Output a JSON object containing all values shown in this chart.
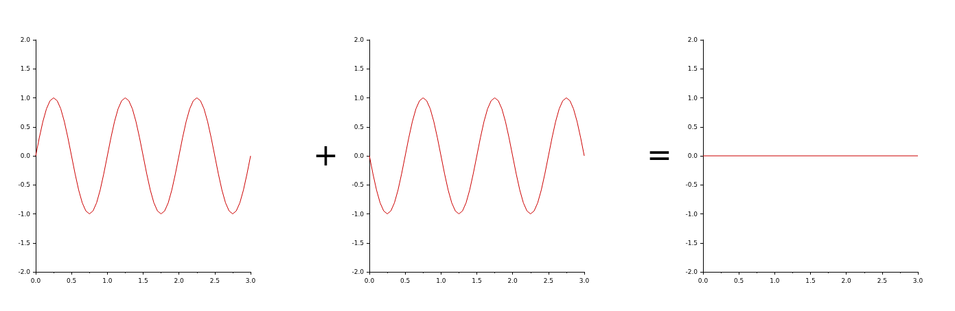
{
  "chart_data": [
    {
      "type": "line",
      "xlim": [
        0,
        3
      ],
      "ylim": [
        -2,
        2
      ],
      "grid": false,
      "marker": "none",
      "line_style": "solid",
      "xticks": [
        {
          "value": 0,
          "label": "0.0"
        },
        {
          "value": 0.5,
          "label": "0.5"
        },
        {
          "value": 1,
          "label": "1.0"
        },
        {
          "value": 1.5,
          "label": "1.5"
        },
        {
          "value": 2,
          "label": "2.0"
        },
        {
          "value": 2.5,
          "label": "2.5"
        },
        {
          "value": 3,
          "label": "3.0"
        }
      ],
      "yticks": [
        {
          "value": -2,
          "label": "-2.0"
        },
        {
          "value": -1.5,
          "label": "-1.5"
        },
        {
          "value": -1,
          "label": "-1.0"
        },
        {
          "value": -0.5,
          "label": "-0.5"
        },
        {
          "value": 0,
          "label": "0.0"
        },
        {
          "value": 0.5,
          "label": "0.5"
        },
        {
          "value": 1,
          "label": "1.0"
        },
        {
          "value": 1.5,
          "label": "1.5"
        },
        {
          "value": 2,
          "label": "2.0"
        }
      ],
      "series": [
        {
          "color": "#cc0000",
          "x": [
            0,
            0.05,
            0.1,
            0.15,
            0.2,
            0.25,
            0.3,
            0.35,
            0.4,
            0.45,
            0.5,
            0.55,
            0.6,
            0.65,
            0.7,
            0.75,
            0.8,
            0.85,
            0.9,
            0.95,
            1,
            1.05,
            1.1,
            1.15,
            1.2,
            1.25,
            1.3,
            1.35,
            1.4,
            1.45,
            1.5,
            1.55,
            1.6,
            1.65,
            1.7,
            1.75,
            1.8,
            1.85,
            1.9,
            1.95,
            2,
            2.05,
            2.1,
            2.15,
            2.2,
            2.25,
            2.3,
            2.35,
            2.4,
            2.45,
            2.5,
            2.55,
            2.6,
            2.65,
            2.7,
            2.75,
            2.8,
            2.85,
            2.9,
            2.95,
            3
          ],
          "values": [
            0,
            0.31,
            0.59,
            0.81,
            0.95,
            1,
            0.95,
            0.81,
            0.59,
            0.31,
            0,
            -0.31,
            -0.59,
            -0.81,
            -0.95,
            -1,
            -0.95,
            -0.81,
            -0.59,
            -0.31,
            0,
            0.31,
            0.59,
            0.81,
            0.95,
            1,
            0.95,
            0.81,
            0.59,
            0.31,
            0,
            -0.31,
            -0.59,
            -0.81,
            -0.95,
            -1,
            -0.95,
            -0.81,
            -0.59,
            -0.31,
            0,
            0.31,
            0.59,
            0.81,
            0.95,
            1,
            0.95,
            0.81,
            0.59,
            0.31,
            0,
            -0.31,
            -0.59,
            -0.81,
            -0.95,
            -1,
            -0.95,
            -0.81,
            -0.59,
            -0.31,
            0
          ]
        }
      ]
    },
    {
      "type": "line",
      "xlim": [
        0,
        3
      ],
      "ylim": [
        -2,
        2
      ],
      "grid": false,
      "marker": "none",
      "line_style": "solid",
      "annotations": [
        "+"
      ],
      "xticks": [
        {
          "value": 0,
          "label": "0.0"
        },
        {
          "value": 0.5,
          "label": "0.5"
        },
        {
          "value": 1,
          "label": "1.0"
        },
        {
          "value": 1.5,
          "label": "1.5"
        },
        {
          "value": 2,
          "label": "2.0"
        },
        {
          "value": 2.5,
          "label": "2.5"
        },
        {
          "value": 3,
          "label": "3.0"
        }
      ],
      "yticks": [
        {
          "value": -2,
          "label": "-2.0"
        },
        {
          "value": -1.5,
          "label": "-1.5"
        },
        {
          "value": -1,
          "label": "-1.0"
        },
        {
          "value": -0.5,
          "label": "-0.5"
        },
        {
          "value": 0,
          "label": "0.0"
        },
        {
          "value": 0.5,
          "label": "0.5"
        },
        {
          "value": 1,
          "label": "1.0"
        },
        {
          "value": 1.5,
          "label": "1.5"
        },
        {
          "value": 2,
          "label": "2.0"
        }
      ],
      "series": [
        {
          "color": "#cc0000",
          "x": [
            0,
            0.05,
            0.1,
            0.15,
            0.2,
            0.25,
            0.3,
            0.35,
            0.4,
            0.45,
            0.5,
            0.55,
            0.6,
            0.65,
            0.7,
            0.75,
            0.8,
            0.85,
            0.9,
            0.95,
            1,
            1.05,
            1.1,
            1.15,
            1.2,
            1.25,
            1.3,
            1.35,
            1.4,
            1.45,
            1.5,
            1.55,
            1.6,
            1.65,
            1.7,
            1.75,
            1.8,
            1.85,
            1.9,
            1.95,
            2,
            2.05,
            2.1,
            2.15,
            2.2,
            2.25,
            2.3,
            2.35,
            2.4,
            2.45,
            2.5,
            2.55,
            2.6,
            2.65,
            2.7,
            2.75,
            2.8,
            2.85,
            2.9,
            2.95,
            3
          ],
          "values": [
            0,
            -0.31,
            -0.59,
            -0.81,
            -0.95,
            -1,
            -0.95,
            -0.81,
            -0.59,
            -0.31,
            0,
            0.31,
            0.59,
            0.81,
            0.95,
            1,
            0.95,
            0.81,
            0.59,
            0.31,
            0,
            -0.31,
            -0.59,
            -0.81,
            -0.95,
            -1,
            -0.95,
            -0.81,
            -0.59,
            -0.31,
            0,
            0.31,
            0.59,
            0.81,
            0.95,
            1,
            0.95,
            0.81,
            0.59,
            0.31,
            0,
            -0.31,
            -0.59,
            -0.81,
            -0.95,
            -1,
            -0.95,
            -0.81,
            -0.59,
            -0.31,
            0,
            0.31,
            0.59,
            0.81,
            0.95,
            1,
            0.95,
            0.81,
            0.59,
            0.31,
            0
          ]
        }
      ]
    },
    {
      "type": "line",
      "xlim": [
        0,
        3
      ],
      "ylim": [
        -2,
        2
      ],
      "grid": false,
      "marker": "none",
      "line_style": "solid",
      "annotations": [
        "="
      ],
      "xticks": [
        {
          "value": 0,
          "label": "0.0"
        },
        {
          "value": 0.5,
          "label": "0.5"
        },
        {
          "value": 1,
          "label": "1.0"
        },
        {
          "value": 1.5,
          "label": "1.5"
        },
        {
          "value": 2,
          "label": "2.0"
        },
        {
          "value": 2.5,
          "label": "2.5"
        },
        {
          "value": 3,
          "label": "3.0"
        }
      ],
      "yticks": [
        {
          "value": -2,
          "label": "-2.0"
        },
        {
          "value": -1.5,
          "label": "-1.5"
        },
        {
          "value": -1,
          "label": "-1.0"
        },
        {
          "value": -0.5,
          "label": "-0.5"
        },
        {
          "value": 0,
          "label": "0.0"
        },
        {
          "value": 0.5,
          "label": "0.5"
        },
        {
          "value": 1,
          "label": "1.0"
        },
        {
          "value": 1.5,
          "label": "1.5"
        },
        {
          "value": 2,
          "label": "2.0"
        }
      ],
      "series": [
        {
          "color": "#cc0000",
          "x": [
            0,
            3
          ],
          "values": [
            0,
            0
          ]
        }
      ]
    }
  ]
}
